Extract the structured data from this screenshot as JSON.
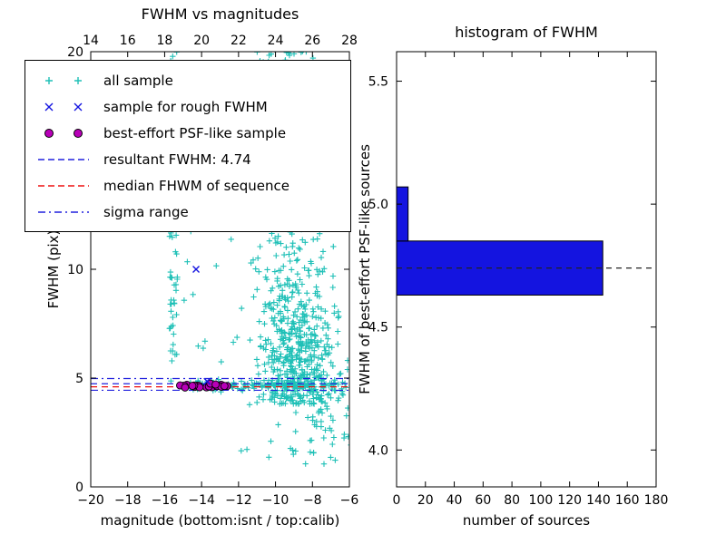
{
  "chart_data": [
    {
      "type": "scatter",
      "title": "FWHM vs magnitudes",
      "xlabel": "magnitude (bottom:isnt / top:calib)",
      "ylabel": "FWHM (pix)",
      "xlim": [
        -20,
        -6
      ],
      "ylim": [
        0,
        20
      ],
      "x_ticks": [
        -20,
        -18,
        -16,
        -14,
        -12,
        -10,
        -8,
        -6
      ],
      "x_tick_labels": [
        "−20",
        "−18",
        "−16",
        "−14",
        "−12",
        "−10",
        "−8",
        "−6"
      ],
      "x_tick_labels_top": [
        "14",
        "16",
        "18",
        "20",
        "22",
        "24",
        "26",
        "28"
      ],
      "y_ticks": [
        0,
        5,
        10,
        15,
        20
      ],
      "y_tick_labels": [
        "0",
        "5",
        "10",
        "15",
        "20"
      ],
      "seed": 20,
      "legend": [
        {
          "label": "all sample",
          "marker": "plus",
          "color": "#1fc0b7"
        },
        {
          "label": "sample for rough FWHM",
          "marker": "x",
          "color": "#1414e0"
        },
        {
          "label": "best-effort PSF-like sample",
          "marker": "circle",
          "color": "#b800b8"
        },
        {
          "label": "resultant FWHM: 4.74",
          "marker": "dashed",
          "color": "#2020dd"
        },
        {
          "label": "median FHWM of sequence",
          "marker": "dashed",
          "color": "#ee1111"
        },
        {
          "label": "sigma range",
          "marker": "dashdot",
          "color": "#2020dd"
        }
      ],
      "lines": [
        {
          "name": "sigma-upper",
          "y": 4.98,
          "style": "dashdot",
          "color": "#2020dd"
        },
        {
          "name": "resultant-fwhm",
          "y": 4.74,
          "style": "dashed",
          "color": "#2020dd"
        },
        {
          "name": "median-fwhm",
          "y": 4.6,
          "style": "dashed",
          "color": "#ee1111"
        },
        {
          "name": "sigma-lower",
          "y": 4.44,
          "style": "dashdot",
          "color": "#2020dd"
        }
      ],
      "resultant_fwhm": 4.74,
      "series": {
        "all_sample": {
          "color": "#1fc0b7",
          "clusters": [
            {
              "count": 85,
              "x": {
                "dist": "uniform",
                "a": -15.75,
                "b": -15.3
              },
              "y": {
                "dist": "uniform",
                "a": 4.8,
                "b": 20.4
              }
            },
            {
              "count": 30,
              "x": {
                "dist": "uniform",
                "a": -15.1,
                "b": -11.9
              },
              "y": {
                "dist": "uniform",
                "a": 5.0,
                "b": 19.5
              }
            },
            {
              "count": 430,
              "x": {
                "dist": "normal",
                "mu": -8.8,
                "sigma": 1.05
              },
              "y": {
                "dist": "halfnormal",
                "base": 3.8,
                "sigma": 2.8
              }
            },
            {
              "count": 240,
              "x": {
                "dist": "normal",
                "mu": -9.4,
                "sigma": 1.15
              },
              "y": {
                "dist": "uniform",
                "a": 6.0,
                "b": 20.4
              }
            },
            {
              "count": 40,
              "x": {
                "dist": "normal",
                "mu": -9.8,
                "sigma": 0.8
              },
              "y": {
                "dist": "uniform",
                "a": 18.5,
                "b": 20.4
              }
            },
            {
              "count": 70,
              "x": {
                "dist": "normal",
                "mu": -8.0,
                "sigma": 1.6
              },
              "y": {
                "dist": "uniform",
                "a": 1.0,
                "b": 4.4
              }
            },
            {
              "count": 150,
              "x": {
                "dist": "uniform",
                "a": -15.35,
                "b": -6.15
              },
              "y": {
                "dist": "normal",
                "mu": 4.68,
                "sigma": 0.1
              }
            }
          ]
        },
        "rough_fwhm": {
          "color": "#1414e0",
          "points": [
            [
              -14.3,
              10.0
            ],
            [
              -13.7,
              4.85
            ]
          ]
        },
        "psf_like": {
          "color": "#b800b8",
          "edge_color": "#000000",
          "count": 22,
          "x": {
            "dist": "uniform",
            "a": -15.2,
            "b": -12.5
          },
          "y": {
            "dist": "normal",
            "mu": 4.66,
            "sigma": 0.06
          }
        }
      }
    },
    {
      "type": "bar",
      "orientation": "horizontal",
      "title": "histogram of FWHM",
      "xlabel": "number of sources",
      "ylabel": "FWHM of best-effort PSF-like sources",
      "xlim": [
        0,
        180
      ],
      "ylim": [
        3.85,
        5.62
      ],
      "x_ticks": [
        0,
        20,
        40,
        60,
        80,
        100,
        120,
        140,
        160,
        180
      ],
      "x_tick_labels": [
        "0",
        "20",
        "40",
        "60",
        "80",
        "100",
        "120",
        "140",
        "160",
        "180"
      ],
      "y_ticks": [
        4.0,
        4.5,
        5.0,
        5.5
      ],
      "y_tick_labels": [
        "4.0",
        "4.5",
        "5.0",
        "5.5"
      ],
      "bars": [
        {
          "from": 4.63,
          "to": 4.85,
          "count": 143
        },
        {
          "from": 4.85,
          "to": 5.07,
          "count": 8
        }
      ],
      "bar_color": "#1414e0",
      "bar_edge_color": "#000000",
      "dashed_line_y": 4.74,
      "dashed_line_color": "#222222"
    }
  ]
}
